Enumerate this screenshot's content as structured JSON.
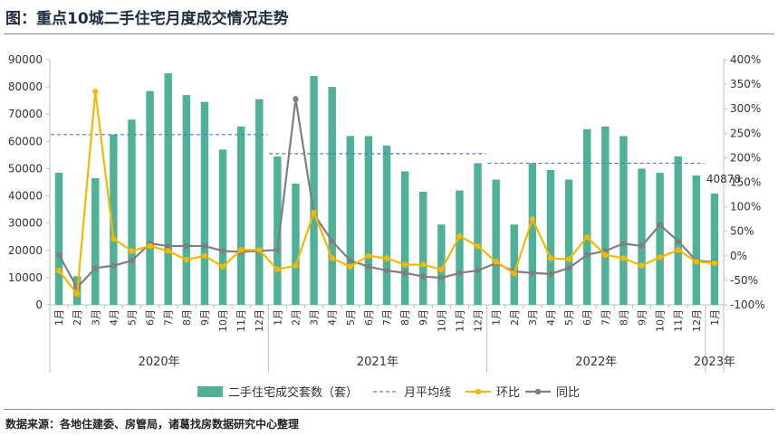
{
  "page": {
    "title": "图：重点10城二手住宅月度成交情况走势",
    "source": "数据来源：各地住建委、房管局，诸葛找房数据研究中心整理"
  },
  "colors": {
    "bar": "#4fb298",
    "avg_line": "#4a7fc1",
    "mom_line": "#f5b800",
    "yoy_line": "#7f7f7f"
  },
  "chart_data": {
    "type": "bar",
    "title": "",
    "y_left": {
      "min": 0,
      "max": 90000,
      "step": 10000,
      "ticks": [
        "0",
        "10000",
        "20000",
        "30000",
        "40000",
        "50000",
        "60000",
        "70000",
        "80000",
        "90000"
      ]
    },
    "y_right": {
      "min": -100,
      "max": 400,
      "step": 50,
      "ticks": [
        "-100%",
        "-50%",
        "0%",
        "50%",
        "100%",
        "150%",
        "200%",
        "250%",
        "300%",
        "350%",
        "400%"
      ]
    },
    "categories": [
      "1月",
      "2月",
      "3月",
      "4月",
      "5月",
      "6月",
      "7月",
      "8月",
      "9月",
      "10月",
      "11月",
      "12月",
      "1月",
      "2月",
      "3月",
      "4月",
      "5月",
      "6月",
      "7月",
      "8月",
      "9月",
      "10月",
      "11月",
      "12月",
      "1月",
      "2月",
      "3月",
      "4月",
      "5月",
      "6月",
      "7月",
      "8月",
      "9月",
      "10月",
      "11月",
      "12月",
      "1月"
    ],
    "year_groups": [
      {
        "label": "2020年",
        "start": 0,
        "count": 12
      },
      {
        "label": "2021年",
        "start": 12,
        "count": 12
      },
      {
        "label": "2022年",
        "start": 24,
        "count": 12
      },
      {
        "label": "2023年",
        "start": 36,
        "count": 1
      }
    ],
    "series": [
      {
        "name": "二手住宅成交套数（套）",
        "type": "bar",
        "axis": "left",
        "values": [
          48500,
          10500,
          46500,
          62500,
          68000,
          78500,
          85000,
          77000,
          74500,
          57000,
          65500,
          75500,
          54500,
          44500,
          84000,
          80000,
          62000,
          62000,
          58500,
          49000,
          41500,
          29500,
          42000,
          52000,
          46000,
          29500,
          52000,
          49500,
          46000,
          64500,
          65500,
          62000,
          50000,
          48500,
          54500,
          47500,
          40878
        ]
      },
      {
        "name": "月平均线",
        "type": "avg",
        "axis": "left",
        "segments": [
          {
            "start": 0,
            "end": 11,
            "value": 62500
          },
          {
            "start": 12,
            "end": 23,
            "value": 55500
          },
          {
            "start": 24,
            "end": 35,
            "value": 52000
          }
        ]
      },
      {
        "name": "环比",
        "type": "line",
        "axis": "right",
        "values": [
          -30,
          -78,
          335,
          35,
          10,
          20,
          10,
          -8,
          0,
          -22,
          12,
          12,
          -28,
          -20,
          88,
          -5,
          -22,
          0,
          -5,
          -18,
          -18,
          -28,
          40,
          20,
          -12,
          -36,
          75,
          -5,
          -7,
          38,
          2,
          -5,
          -20,
          -3,
          12,
          -12,
          -15
        ]
      },
      {
        "name": "同比",
        "type": "line",
        "axis": "right",
        "values": [
          2,
          -65,
          -25,
          -20,
          -10,
          25,
          20,
          20,
          20,
          10,
          8,
          10,
          12,
          320,
          85,
          30,
          -10,
          -22,
          -30,
          -35,
          -42,
          -45,
          -35,
          -30,
          -15,
          -32,
          -35,
          -37,
          -25,
          2,
          10,
          25,
          20,
          63,
          30,
          -10,
          -13
        ]
      }
    ],
    "data_labels": [
      {
        "series": 0,
        "index": 36,
        "text": "40878"
      }
    ],
    "legend": {
      "position": "bottom",
      "items": [
        "二手住宅成交套数（套）",
        "月平均线",
        "环比",
        "同比"
      ]
    },
    "grid": false
  }
}
